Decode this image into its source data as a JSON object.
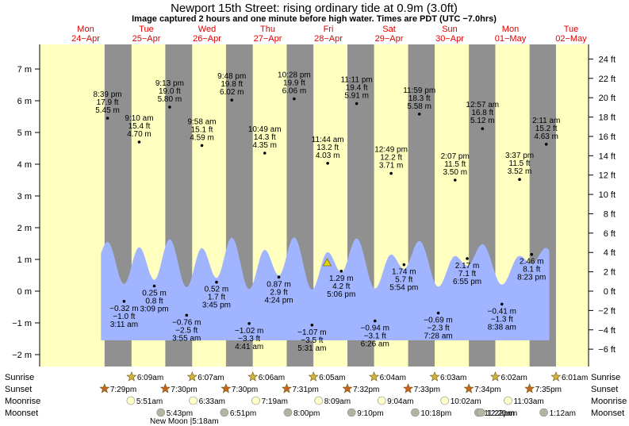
{
  "chart_data": {
    "type": "area",
    "title": "Newport 15th Street: rising  ordinary tide at 0.9m (3.0ft)",
    "subtitle": "Image captured 2 hours and one minute before high water. Times are PDT (UTC −7.0hrs)",
    "days": [
      {
        "dow": "Mon",
        "date": "24−Apr"
      },
      {
        "dow": "Tue",
        "date": "25−Apr"
      },
      {
        "dow": "Wed",
        "date": "26−Apr"
      },
      {
        "dow": "Thu",
        "date": "27−Apr"
      },
      {
        "dow": "Fri",
        "date": "28−Apr"
      },
      {
        "dow": "Sat",
        "date": "29−Apr"
      },
      {
        "dow": "Sun",
        "date": "30−Apr"
      },
      {
        "dow": "Mon",
        "date": "01−May"
      },
      {
        "dow": "Tue",
        "date": "02−May"
      }
    ],
    "y_left_ticks": [
      "7 m",
      "6 m",
      "5 m",
      "4 m",
      "3 m",
      "2 m",
      "1 m",
      "0 m",
      "−1 m",
      "−2 m"
    ],
    "y_right_ticks": [
      "24 ft",
      "22 ft",
      "20 ft",
      "18 ft",
      "16 ft",
      "14 ft",
      "12 ft",
      "10 ft",
      "8 ft",
      "6 ft",
      "4 ft",
      "2 ft",
      "0 ft",
      "−2 ft",
      "−4 ft",
      "−6 ft"
    ],
    "ylim_m": [
      -2.2,
      7.5
    ],
    "current_level_m": 0.9,
    "extremes": [
      {
        "day": 0,
        "hour": 20.65,
        "m": 5.45,
        "l1": "8:39 pm",
        "l2": "17.9 ft",
        "l3": "5.45 m",
        "kind": "high"
      },
      {
        "day": 1,
        "hour": 3.18,
        "m": -0.32,
        "l1": "−0.32 m",
        "l2": "−1.0 ft",
        "l3": "3:11 am",
        "kind": "low"
      },
      {
        "day": 1,
        "hour": 9.17,
        "m": 4.7,
        "l1": "9:10 am",
        "l2": "15.4 ft",
        "l3": "4.70 m",
        "kind": "high"
      },
      {
        "day": 1,
        "hour": 15.15,
        "m": 0.25,
        "l1": "0.25 m",
        "l2": "0.8 ft",
        "l3": "3:09 pm",
        "kind": "low"
      },
      {
        "day": 1,
        "hour": 21.22,
        "m": 5.8,
        "l1": "9:13 pm",
        "l2": "19.0 ft",
        "l3": "5.80 m",
        "kind": "high"
      },
      {
        "day": 2,
        "hour": 3.92,
        "m": -0.76,
        "l1": "−0.76 m",
        "l2": "−2.5 ft",
        "l3": "3:55 am",
        "kind": "low"
      },
      {
        "day": 2,
        "hour": 9.97,
        "m": 4.59,
        "l1": "9:58 am",
        "l2": "15.1 ft",
        "l3": "4.59 m",
        "kind": "high"
      },
      {
        "day": 2,
        "hour": 15.75,
        "m": 0.52,
        "l1": "0.52 m",
        "l2": "1.7 ft",
        "l3": "3:45 pm",
        "kind": "low"
      },
      {
        "day": 2,
        "hour": 21.8,
        "m": 6.02,
        "l1": "9:48 pm",
        "l2": "19.8 ft",
        "l3": "6.02 m",
        "kind": "high"
      },
      {
        "day": 3,
        "hour": 4.68,
        "m": -1.02,
        "l1": "−1.02 m",
        "l2": "−3.3 ft",
        "l3": "4:41 am",
        "kind": "low"
      },
      {
        "day": 3,
        "hour": 10.82,
        "m": 4.35,
        "l1": "10:49 am",
        "l2": "14.3 ft",
        "l3": "4.35 m",
        "kind": "high"
      },
      {
        "day": 3,
        "hour": 16.4,
        "m": 0.87,
        "l1": "0.87 m",
        "l2": "2.9 ft",
        "l3": "4:24 pm",
        "kind": "low"
      },
      {
        "day": 3,
        "hour": 22.47,
        "m": 6.06,
        "l1": "10:28 pm",
        "l2": "19.9 ft",
        "l3": "6.06 m",
        "kind": "high"
      },
      {
        "day": 4,
        "hour": 5.52,
        "m": -1.07,
        "l1": "−1.07 m",
        "l2": "−3.5 ft",
        "l3": "5:31 am",
        "kind": "low"
      },
      {
        "day": 4,
        "hour": 11.73,
        "m": 4.03,
        "l1": "11:44 am",
        "l2": "13.2 ft",
        "l3": "4.03 m",
        "kind": "high"
      },
      {
        "day": 4,
        "hour": 17.1,
        "m": 1.29,
        "l1": "1.29 m",
        "l2": "4.2 ft",
        "l3": "5:06 pm",
        "kind": "low"
      },
      {
        "day": 4,
        "hour": 23.18,
        "m": 5.91,
        "l1": "11:11 pm",
        "l2": "19.4 ft",
        "l3": "5.91 m",
        "kind": "high"
      },
      {
        "day": 5,
        "hour": 6.43,
        "m": -0.94,
        "l1": "−0.94 m",
        "l2": "−3.1 ft",
        "l3": "6:26 am",
        "kind": "low"
      },
      {
        "day": 5,
        "hour": 12.82,
        "m": 3.71,
        "l1": "12:49 pm",
        "l2": "12.2 ft",
        "l3": "3.71 m",
        "kind": "high"
      },
      {
        "day": 5,
        "hour": 17.9,
        "m": 1.74,
        "l1": "1.74 m",
        "l2": "5.7 ft",
        "l3": "5:54 pm",
        "kind": "low"
      },
      {
        "day": 5,
        "hour": 23.98,
        "m": 5.58,
        "l1": "11:59 pm",
        "l2": "18.3 ft",
        "l3": "5.58 m",
        "kind": "high"
      },
      {
        "day": 6,
        "hour": 7.47,
        "m": -0.69,
        "l1": "−0.69 m",
        "l2": "−2.3 ft",
        "l3": "7:28 am",
        "kind": "low"
      },
      {
        "day": 6,
        "hour": 14.12,
        "m": 3.5,
        "l1": "2:07 pm",
        "l2": "11.5 ft",
        "l3": "3.50 m",
        "kind": "high"
      },
      {
        "day": 6,
        "hour": 18.92,
        "m": 2.17,
        "l1": "2.17 m",
        "l2": "7.1 ft",
        "l3": "6:55 pm",
        "kind": "low"
      },
      {
        "day": 7,
        "hour": 0.95,
        "m": 5.12,
        "l1": "12:57 am",
        "l2": "16.8 ft",
        "l3": "5.12 m",
        "kind": "high"
      },
      {
        "day": 7,
        "hour": 8.63,
        "m": -0.41,
        "l1": "−0.41 m",
        "l2": "−1.3 ft",
        "l3": "8:38 am",
        "kind": "low"
      },
      {
        "day": 7,
        "hour": 15.62,
        "m": 3.52,
        "l1": "3:37 pm",
        "l2": "11.5 ft",
        "l3": "3.52 m",
        "kind": "high"
      },
      {
        "day": 7,
        "hour": 20.38,
        "m": 2.46,
        "l1": "2.46 m",
        "l2": "8.1 ft",
        "l3": "8:23 pm",
        "kind": "low"
      },
      {
        "day": 8,
        "hour": 2.18,
        "m": 4.63,
        "l1": "2:11 am",
        "l2": "15.2 ft",
        "l3": "4.63 m",
        "kind": "high"
      }
    ],
    "dark_columns": [
      {
        "start_day": 0,
        "start_hour": 19.48,
        "end_day": 1,
        "end_hour": 6.15
      },
      {
        "start_day": 1,
        "start_hour": 19.5,
        "end_day": 2,
        "end_hour": 6.12
      },
      {
        "start_day": 2,
        "start_hour": 19.5,
        "end_day": 3,
        "end_hour": 6.1
      },
      {
        "start_day": 3,
        "start_hour": 19.52,
        "end_day": 4,
        "end_hour": 6.08
      },
      {
        "start_day": 4,
        "start_hour": 19.53,
        "end_day": 5,
        "end_hour": 6.07
      },
      {
        "start_day": 5,
        "start_hour": 19.55,
        "end_day": 6,
        "end_hour": 6.05
      },
      {
        "start_day": 6,
        "start_hour": 19.57,
        "end_day": 7,
        "end_hour": 6.03
      },
      {
        "start_day": 7,
        "start_hour": 19.58,
        "end_day": 8,
        "end_hour": 6.02
      }
    ],
    "row_labels": {
      "sunrise": "Sunrise",
      "sunset": "Sunset",
      "moonrise": "Moonrise",
      "moonset": "Moonset"
    },
    "sunrise": [
      {
        "day": 1,
        "hour": 6.15,
        "label": "6:09am"
      },
      {
        "day": 2,
        "hour": 6.12,
        "label": "6:07am"
      },
      {
        "day": 3,
        "hour": 6.1,
        "label": "6:06am"
      },
      {
        "day": 4,
        "hour": 6.08,
        "label": "6:05am"
      },
      {
        "day": 5,
        "hour": 6.07,
        "label": "6:04am"
      },
      {
        "day": 6,
        "hour": 6.05,
        "label": "6:03am"
      },
      {
        "day": 7,
        "hour": 6.03,
        "label": "6:02am"
      },
      {
        "day": 8,
        "hour": 6.02,
        "label": "6:01am"
      }
    ],
    "sunset": [
      {
        "day": 0,
        "hour": 19.48,
        "label": "7:29pm"
      },
      {
        "day": 1,
        "hour": 19.5,
        "label": "7:30pm"
      },
      {
        "day": 2,
        "hour": 19.5,
        "label": "7:30pm"
      },
      {
        "day": 3,
        "hour": 19.52,
        "label": "7:31pm"
      },
      {
        "day": 4,
        "hour": 19.53,
        "label": "7:32pm"
      },
      {
        "day": 5,
        "hour": 19.55,
        "label": "7:33pm"
      },
      {
        "day": 6,
        "hour": 19.57,
        "label": "7:34pm"
      },
      {
        "day": 7,
        "hour": 19.58,
        "label": "7:35pm"
      }
    ],
    "moonrise": [
      {
        "day": 1,
        "hour": 5.85,
        "label": "5:51am"
      },
      {
        "day": 2,
        "hour": 6.55,
        "label": "6:33am"
      },
      {
        "day": 3,
        "hour": 7.32,
        "label": "7:19am"
      },
      {
        "day": 4,
        "hour": 8.15,
        "label": "8:09am"
      },
      {
        "day": 5,
        "hour": 9.07,
        "label": "9:04am"
      },
      {
        "day": 6,
        "hour": 10.03,
        "label": "10:02am"
      },
      {
        "day": 7,
        "hour": 11.05,
        "label": "11:03am"
      }
    ],
    "moonset": [
      {
        "day": 1,
        "hour": 17.72,
        "label": "5:43pm"
      },
      {
        "day": 2,
        "hour": 18.85,
        "label": "6:51pm"
      },
      {
        "day": 3,
        "hour": 20.0,
        "label": "8:00pm"
      },
      {
        "day": 4,
        "hour": 21.17,
        "label": "9:10pm"
      },
      {
        "day": 5,
        "hour": 22.3,
        "label": "10:18pm"
      },
      {
        "day": 6,
        "hour": 23.37,
        "label": "11:22pm"
      },
      {
        "day": 7,
        "hour": 0.33,
        "label": "12:20am"
      },
      {
        "day": 8,
        "hour": 1.2,
        "label": "1:12am"
      }
    ],
    "new_moon_note": "New Moon |5:18am",
    "colors": {
      "day_bg": "#ffffc0",
      "night_bg": "#909090",
      "water": "#a0b4ff",
      "title_date": "#e00000",
      "sun_icon": "#d2b43c",
      "sunset_icon": "#c8641e",
      "moon_rise": "#ffffc8",
      "moon_set": "#b4b4a0"
    }
  }
}
